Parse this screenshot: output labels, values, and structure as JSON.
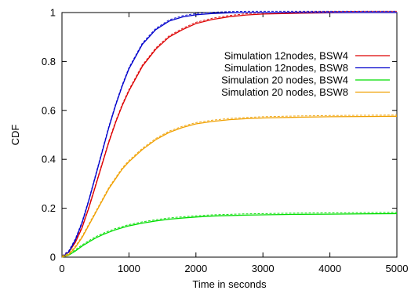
{
  "chart_data": {
    "type": "line",
    "title": "",
    "xlabel": "Time in seconds",
    "ylabel": "CDF",
    "xlim": [
      0,
      5000
    ],
    "ylim": [
      0,
      1
    ],
    "xticks": [
      0,
      1000,
      2000,
      3000,
      4000,
      5000
    ],
    "yticks": [
      0,
      0.2,
      0.4,
      0.6,
      0.8,
      1
    ],
    "xtick_labels": [
      "0",
      "1000",
      "2000",
      "3000",
      "4000",
      "5000"
    ],
    "ytick_labels": [
      "0",
      "0.2",
      "0.4",
      "0.6",
      "0.8",
      "1"
    ],
    "grid": false,
    "legend_position": "right",
    "series": [
      {
        "name": "Simulation 12nodes, BSW4",
        "color": "#dd0000",
        "x": [
          0,
          100,
          200,
          300,
          400,
          500,
          600,
          700,
          800,
          900,
          1000,
          1200,
          1400,
          1600,
          1800,
          2000,
          2250,
          2500,
          2750,
          3000,
          3500,
          4000,
          4500,
          5000
        ],
        "y": [
          0,
          0.02,
          0.06,
          0.12,
          0.2,
          0.29,
          0.38,
          0.47,
          0.55,
          0.62,
          0.68,
          0.78,
          0.85,
          0.9,
          0.93,
          0.955,
          0.972,
          0.983,
          0.99,
          0.994,
          0.997,
          0.999,
          1,
          1
        ]
      },
      {
        "name": "Simulation 12nodes, BSW8",
        "color": "#0000cc",
        "x": [
          0,
          100,
          200,
          300,
          400,
          500,
          600,
          700,
          800,
          900,
          1000,
          1200,
          1400,
          1600,
          1800,
          2000,
          2250,
          2500,
          2750,
          3000,
          3500,
          4000,
          4500,
          5000
        ],
        "y": [
          0,
          0.02,
          0.07,
          0.14,
          0.23,
          0.33,
          0.43,
          0.53,
          0.62,
          0.7,
          0.77,
          0.87,
          0.93,
          0.965,
          0.982,
          0.991,
          0.996,
          0.999,
          1,
          1,
          1,
          1,
          1,
          1
        ]
      },
      {
        "name": "Simulation 20 nodes, BSW4",
        "color": "#00dd00",
        "x": [
          0,
          100,
          200,
          300,
          400,
          500,
          600,
          700,
          800,
          900,
          1000,
          1200,
          1400,
          1600,
          1800,
          2000,
          2250,
          2500,
          2750,
          3000,
          3500,
          4000,
          4500,
          5000
        ],
        "y": [
          0,
          0.008,
          0.025,
          0.045,
          0.062,
          0.078,
          0.091,
          0.102,
          0.112,
          0.12,
          0.128,
          0.139,
          0.148,
          0.155,
          0.16,
          0.164,
          0.168,
          0.17,
          0.172,
          0.173,
          0.175,
          0.176,
          0.177,
          0.178
        ]
      },
      {
        "name": "Simulation 20 nodes, BSW8",
        "color": "#f0a000",
        "x": [
          0,
          100,
          200,
          300,
          400,
          500,
          600,
          700,
          800,
          900,
          1000,
          1200,
          1400,
          1600,
          1800,
          2000,
          2250,
          2500,
          2750,
          3000,
          3500,
          4000,
          4500,
          5000
        ],
        "y": [
          0,
          0.01,
          0.04,
          0.08,
          0.13,
          0.18,
          0.23,
          0.28,
          0.32,
          0.36,
          0.39,
          0.44,
          0.48,
          0.51,
          0.53,
          0.545,
          0.555,
          0.562,
          0.566,
          0.569,
          0.572,
          0.574,
          0.575,
          0.576
        ]
      }
    ]
  }
}
